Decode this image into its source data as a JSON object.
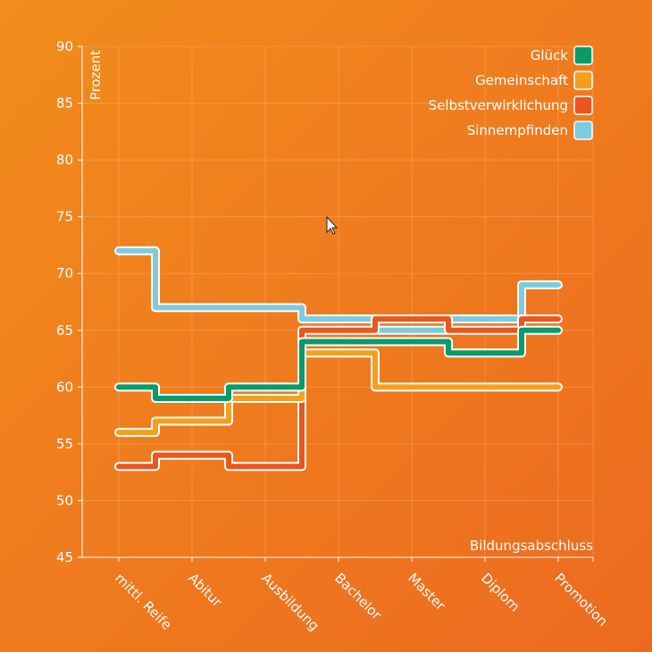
{
  "chart_data": {
    "type": "line",
    "step": "middle",
    "categories": [
      "mittl. Reife",
      "Abitur",
      "Ausbildung",
      "Bachelor",
      "Master",
      "Diplom",
      "Promotion"
    ],
    "series": [
      {
        "name": "Sinnempfinden",
        "color": "#7ecbe0",
        "values": [
          72,
          67,
          67,
          66,
          65,
          66,
          69
        ]
      },
      {
        "name": "Selbstverwirklichung",
        "color": "#e8571f",
        "values": [
          53,
          54,
          53,
          65,
          66,
          65,
          66
        ]
      },
      {
        "name": "Gemeinschaft",
        "color": "#f3a020",
        "values": [
          56,
          57,
          59,
          63,
          60,
          60,
          60
        ]
      },
      {
        "name": "Glück",
        "color": "#0b9a6a",
        "values": [
          60,
          59,
          60,
          64,
          64,
          63,
          65
        ]
      }
    ],
    "legend_order": [
      "Glück",
      "Gemeinschaft",
      "Selbstverwirklichung",
      "Sinnempfinden"
    ],
    "xlabel": "Bildungsabschluss",
    "ylabel": "Prozent",
    "ylim": [
      45,
      90
    ],
    "yticks": [
      45,
      50,
      55,
      60,
      65,
      70,
      75,
      80,
      85,
      90
    ],
    "grid": true,
    "legend_position": "top-right"
  }
}
